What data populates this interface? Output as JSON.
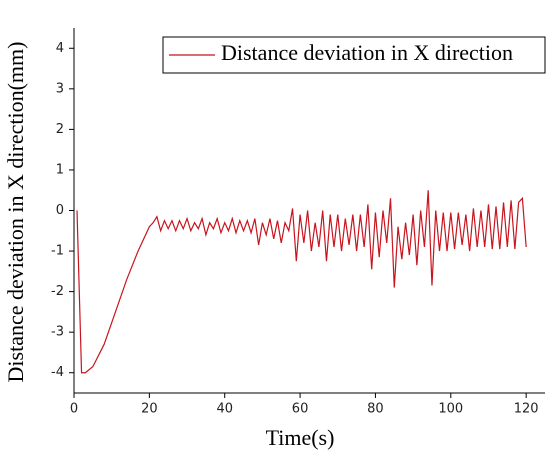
{
  "chart_data": {
    "type": "line",
    "xlabel": "Time(s)",
    "ylabel": "Distance deviation in X direction(mm)",
    "x": [
      0.8,
      2,
      3,
      5,
      8,
      11,
      14,
      17,
      20,
      21,
      22,
      23,
      24,
      25,
      26,
      27,
      28,
      29,
      30,
      31,
      32,
      33,
      34,
      35,
      36,
      37,
      38,
      39,
      40,
      41,
      42,
      43,
      44,
      45,
      46,
      47,
      48,
      49,
      50,
      51,
      52,
      53,
      54,
      55,
      56,
      57,
      58,
      59,
      60,
      61,
      62,
      63,
      64,
      65,
      66,
      67,
      68,
      69,
      70,
      71,
      72,
      73,
      74,
      75,
      76,
      77,
      78,
      79,
      80,
      81,
      82,
      83,
      84,
      85,
      86,
      87,
      88,
      89,
      90,
      91,
      92,
      93,
      94,
      95,
      96,
      97,
      98,
      99,
      100,
      101,
      102,
      103,
      104,
      105,
      106,
      107,
      108,
      109,
      110,
      111,
      112,
      113,
      114,
      115,
      116,
      117,
      118,
      119,
      120
    ],
    "series": [
      {
        "name": "Distance deviation in X direction",
        "color": "#c8141e",
        "values": [
          0,
          -4.0,
          -4.0,
          -3.85,
          -3.3,
          -2.5,
          -1.7,
          -1.0,
          -0.4,
          -0.3,
          -0.15,
          -0.5,
          -0.25,
          -0.45,
          -0.25,
          -0.5,
          -0.25,
          -0.45,
          -0.2,
          -0.5,
          -0.3,
          -0.45,
          -0.2,
          -0.6,
          -0.3,
          -0.45,
          -0.2,
          -0.55,
          -0.3,
          -0.5,
          -0.2,
          -0.55,
          -0.25,
          -0.5,
          -0.25,
          -0.55,
          -0.2,
          -0.85,
          -0.3,
          -0.6,
          -0.2,
          -0.7,
          -0.25,
          -0.8,
          -0.3,
          -0.5,
          0.05,
          -1.25,
          -0.1,
          -0.8,
          0.0,
          -1.0,
          -0.3,
          -0.9,
          0.0,
          -1.25,
          -0.1,
          -0.9,
          -0.1,
          -1.0,
          -0.2,
          -0.85,
          -0.1,
          -1.0,
          -0.1,
          -0.9,
          0.15,
          -1.45,
          -0.05,
          -1.15,
          0.0,
          -0.8,
          0.3,
          -1.9,
          -0.4,
          -1.2,
          -0.3,
          -1.1,
          -0.1,
          -1.35,
          0.0,
          -0.9,
          0.5,
          -1.85,
          0.0,
          -1.0,
          -0.05,
          -1.0,
          -0.05,
          -0.95,
          -0.05,
          -0.85,
          -0.1,
          -1.0,
          0.05,
          -0.9,
          0.0,
          -0.9,
          0.15,
          -0.95,
          0.1,
          -0.95,
          0.2,
          -0.9,
          0.25,
          -0.95,
          0.2,
          0.3,
          -0.9
        ]
      }
    ],
    "xlim": [
      0,
      125
    ],
    "xticks": [
      0,
      20,
      40,
      60,
      80,
      100,
      120
    ],
    "ylim": [
      -4.5,
      4.5
    ],
    "yticks": [
      -4,
      -3,
      -2,
      -1,
      0,
      1,
      2,
      3,
      4
    ],
    "legend": "top-right"
  }
}
